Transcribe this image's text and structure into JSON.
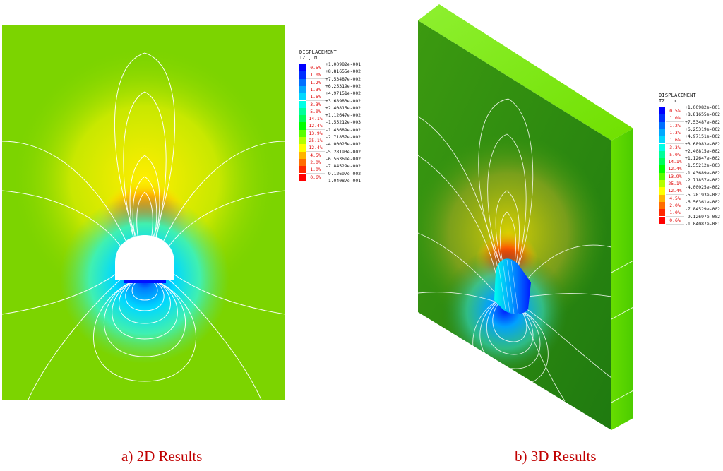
{
  "figure": {
    "panel_a": {
      "caption": "a) 2D Results"
    },
    "panel_b": {
      "caption": "b) 3D Results"
    },
    "legend": {
      "title": "DISPLACEMENT",
      "unit": "TZ , m",
      "values": [
        "+1.00982e-001",
        "+8.81655e-002",
        "+7.53487e-002",
        "+6.25319e-002",
        "+4.97151e-002",
        "+3.68983e-002",
        "+2.40815e-002",
        "+1.12647e-002",
        "-1.55212e-003",
        "-1.43689e-002",
        "-2.71857e-002",
        "-4.00025e-002",
        "-5.28193e-002",
        "-6.56361e-002",
        "-7.84529e-002",
        "-9.12697e-002",
        "-1.04087e-001"
      ],
      "percentages": [
        "0.5%",
        "1.0%",
        "1.2%",
        "1.3%",
        "1.6%",
        "3.3%",
        "5.0%",
        "14.1%",
        "12.4%",
        "13.9%",
        "25.1%",
        "12.4%",
        "4.5%",
        "2.0%",
        "1.0%",
        "0.6%"
      ],
      "colors": [
        "#0000ff",
        "#0030ff",
        "#0070ff",
        "#00a8ff",
        "#00d8ff",
        "#00ffe6",
        "#00ff9a",
        "#00ff5a",
        "#00ff00",
        "#5aff00",
        "#b4ff00",
        "#ffff00",
        "#ffb400",
        "#ff6e00",
        "#ff2800",
        "#ff0000"
      ]
    }
  }
}
